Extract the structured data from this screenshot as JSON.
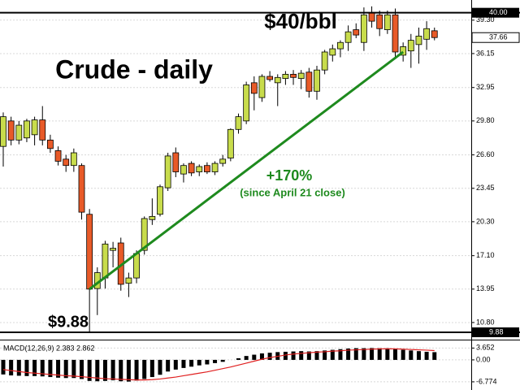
{
  "chart_data": [
    {
      "type": "candlestick",
      "title": "Crude - daily",
      "annotations": [
        "$40/bbl",
        "+170%",
        "(since April 21 close)",
        "$9.88"
      ],
      "open": [
        27.4,
        29.8,
        28.0,
        28.2,
        28.5,
        29.9,
        28.0,
        27.0,
        26.2,
        25.6,
        25.6,
        21.0,
        14.0,
        15.0,
        17.6,
        18.3,
        14.5,
        15.0,
        17.6,
        20.5,
        21.0,
        23.5,
        26.8,
        24.8,
        25.8,
        25.0,
        25.6,
        25.0,
        25.8,
        26.3,
        29.0,
        29.8,
        33.4,
        32.0,
        34.0,
        33.4,
        33.8,
        34.2,
        33.8,
        34.4,
        32.6,
        34.6,
        36.0,
        36.6,
        37.2,
        38.4,
        37.2,
        40.0,
        39.8,
        38.4,
        39.8,
        36.0,
        36.4,
        37.0,
        37.5,
        38.3
      ],
      "high": [
        30.6,
        30.2,
        29.8,
        30.0,
        30.2,
        31.2,
        28.5,
        27.4,
        26.6,
        27.2,
        25.8,
        21.5,
        16.0,
        18.5,
        18.4,
        18.8,
        15.5,
        17.6,
        20.8,
        22.5,
        23.8,
        26.8,
        27.3,
        25.8,
        26.0,
        25.7,
        25.9,
        26.0,
        26.6,
        29.1,
        30.5,
        33.5,
        34.0,
        34.2,
        34.5,
        34.2,
        34.5,
        34.6,
        34.6,
        34.8,
        35.0,
        36.5,
        37.0,
        37.4,
        38.8,
        39.0,
        40.5,
        40.6,
        40.2,
        40.2,
        40.4,
        37.2,
        38.0,
        38.6,
        39.2,
        38.6
      ],
      "low": [
        25.5,
        27.5,
        27.6,
        27.8,
        27.5,
        27.5,
        26.8,
        25.6,
        25.0,
        25.0,
        20.5,
        9.88,
        11.5,
        14.0,
        16.0,
        13.8,
        13.2,
        14.5,
        17.2,
        20.0,
        20.8,
        23.2,
        24.5,
        24.0,
        24.6,
        24.6,
        24.8,
        24.7,
        25.5,
        26.0,
        28.6,
        29.5,
        30.8,
        31.6,
        33.5,
        31.2,
        33.2,
        33.2,
        32.8,
        32.0,
        31.8,
        34.2,
        35.4,
        35.8,
        36.4,
        37.6,
        36.4,
        38.6,
        37.8,
        38.0,
        35.8,
        35.4,
        34.8,
        35.2,
        36.5,
        37.4
      ],
      "close": [
        30.2,
        28.0,
        29.4,
        29.8,
        29.9,
        28.0,
        27.2,
        26.0,
        25.6,
        26.8,
        21.2,
        13.95,
        15.5,
        18.2,
        17.8,
        14.4,
        15.0,
        17.3,
        20.6,
        20.8,
        23.6,
        26.5,
        25.0,
        25.6,
        24.9,
        25.5,
        25.0,
        25.8,
        26.2,
        29.0,
        30.2,
        33.2,
        32.4,
        34.0,
        33.7,
        33.9,
        34.2,
        33.9,
        34.3,
        32.6,
        34.6,
        36.3,
        36.6,
        37.2,
        38.2,
        37.9,
        39.8,
        39.2,
        38.5,
        39.8,
        36.3,
        36.8,
        37.4,
        37.8,
        38.5,
        37.66
      ],
      "up_color": "#c8dc4c",
      "down_color": "#e85a28",
      "trendline": {
        "x": [
          11,
          51
        ],
        "y": [
          13.95,
          36.3
        ],
        "color": "#1e8a1e"
      },
      "ylim": [
        9.8,
        41.2
      ],
      "yticks": [
        {
          "value": 39.3,
          "label": "39.30"
        },
        36.15,
        32.95,
        {
          "value": 29.8,
          "label": "29.80"
        },
        {
          "value": 26.6,
          "label": "26.60"
        },
        23.45,
        {
          "value": 20.3,
          "label": "20.30"
        },
        {
          "value": 17.1,
          "label": "17.10"
        },
        13.95,
        {
          "value": 10.8,
          "label": "10.80"
        }
      ],
      "reference_lines": [
        {
          "value": 40,
          "label": "40.00"
        },
        {
          "value": 9.88,
          "label": "9.88"
        }
      ],
      "last_price": {
        "value": 37.66,
        "label": "37.66"
      },
      "grid": true
    },
    {
      "type": "macd",
      "title": "MACD(12,26,9) 2.383 2.862",
      "series": [
        {
          "kind": "bar",
          "color": "#000000",
          "values": [
            -4.5,
            -4.8,
            -4.9,
            -5.0,
            -5.0,
            -5.1,
            -5.3,
            -5.5,
            -5.6,
            -5.6,
            -5.9,
            -6.5,
            -6.6,
            -6.5,
            -6.3,
            -6.6,
            -6.7,
            -6.4,
            -5.9,
            -5.3,
            -4.6,
            -3.6,
            -3.0,
            -2.5,
            -2.1,
            -1.7,
            -1.4,
            -1.0,
            -0.6,
            0.0,
            0.5,
            1.2,
            1.6,
            2.0,
            2.2,
            2.4,
            2.5,
            2.6,
            2.7,
            2.6,
            2.7,
            2.9,
            3.1,
            3.3,
            3.5,
            3.6,
            3.6,
            3.65,
            3.6,
            3.6,
            3.3,
            3.1,
            2.9,
            2.7,
            2.5,
            2.383
          ]
        },
        {
          "kind": "line",
          "color": "#e02020",
          "values": [
            -3.0,
            -3.3,
            -3.6,
            -3.9,
            -4.1,
            -4.3,
            -4.5,
            -4.7,
            -4.9,
            -5.0,
            -5.2,
            -5.4,
            -5.6,
            -5.8,
            -5.9,
            -6.0,
            -6.1,
            -6.2,
            -6.2,
            -6.1,
            -5.9,
            -5.6,
            -5.3,
            -4.9,
            -4.5,
            -4.1,
            -3.7,
            -3.2,
            -2.7,
            -2.2,
            -1.6,
            -1.0,
            -0.4,
            0.2,
            0.7,
            1.1,
            1.5,
            1.8,
            2.0,
            2.2,
            2.4,
            2.5,
            2.7,
            2.8,
            3.0,
            3.1,
            3.2,
            3.3,
            3.4,
            3.4,
            3.4,
            3.3,
            3.2,
            3.1,
            3.0,
            2.862
          ]
        }
      ],
      "ylim": [
        -9.3,
        6.0
      ],
      "yticks": [
        3.652,
        {
          "value": 0,
          "label": "0.00"
        },
        -6.774
      ],
      "grid": true
    }
  ]
}
